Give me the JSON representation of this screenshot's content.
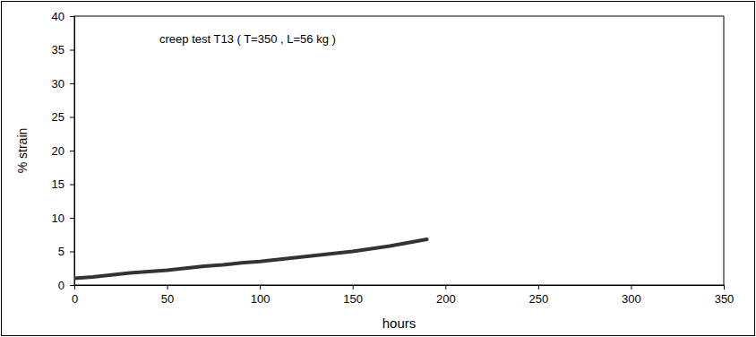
{
  "chart_data": {
    "type": "line",
    "title": "creep test T13 ( T=350 , L=56 kg )",
    "x_label": "hours",
    "y_label": "% strain",
    "x": [
      0,
      10,
      20,
      30,
      40,
      50,
      60,
      70,
      80,
      90,
      100,
      110,
      120,
      130,
      140,
      150,
      160,
      170,
      180,
      190
    ],
    "values": [
      1.0,
      1.2,
      1.5,
      1.8,
      2.0,
      2.2,
      2.5,
      2.8,
      3.0,
      3.3,
      3.5,
      3.8,
      4.1,
      4.4,
      4.7,
      5.0,
      5.4,
      5.8,
      6.3,
      6.8
    ],
    "color": "#333333",
    "line_style": "solid",
    "xlim": [
      0,
      350
    ],
    "xticks": [
      0,
      50,
      100,
      150,
      200,
      250,
      300,
      350
    ],
    "ylim": [
      0,
      40
    ],
    "yticks": [
      0,
      5,
      10,
      15,
      20,
      25,
      30,
      35,
      40
    ],
    "grid": false
  }
}
